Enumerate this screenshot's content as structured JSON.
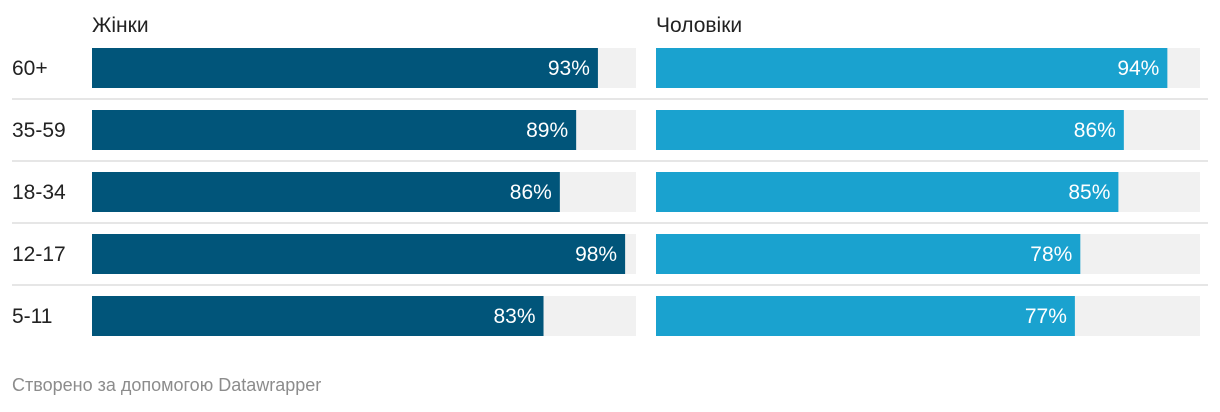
{
  "chart_data": {
    "type": "bar",
    "orientation": "horizontal",
    "categories": [
      "60+",
      "35-59",
      "18-34",
      "12-17",
      "5-11"
    ],
    "series": [
      {
        "name": "Жінки",
        "values": [
          93,
          89,
          86,
          98,
          83
        ],
        "color": "#01557a",
        "value_format": "%"
      },
      {
        "name": "Чоловіки",
        "values": [
          94,
          86,
          85,
          78,
          77
        ],
        "color": "#1aa2cf",
        "value_format": "%"
      }
    ],
    "xlim": [
      0,
      100
    ],
    "background_color": "#f1f1f1",
    "separator_color": "#cccccc",
    "value_label_color": "#ffffff",
    "legend": "panel-titles",
    "grid": false
  },
  "footer": {
    "credit": "Створено за допомогою Datawrapper"
  }
}
